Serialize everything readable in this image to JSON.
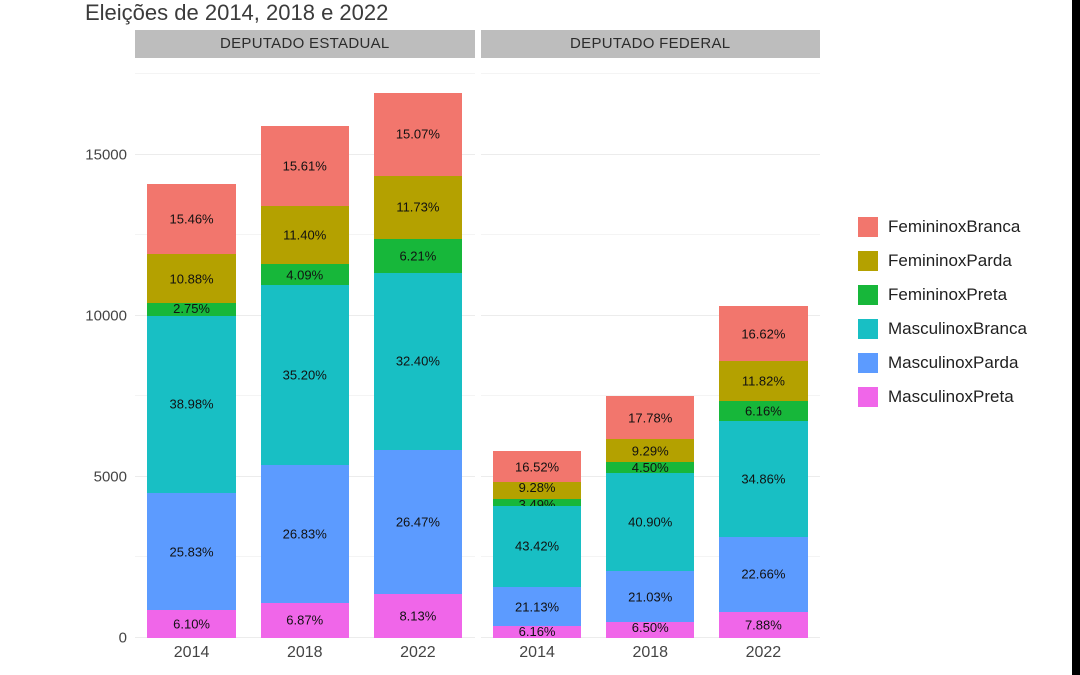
{
  "subtitle": "Eleições de 2014, 2018 e 2022",
  "ymax": 18000,
  "y_ticks": [
    0,
    5000,
    10000,
    15000
  ],
  "y_minor_ticks": [
    2500,
    7500,
    12500,
    17500
  ],
  "colors": {
    "FemininoxBranca": "#f2766d",
    "FemininoxParda": "#b4a100",
    "FemininoxPreta": "#17b73a",
    "MasculinoxBranca": "#18bfc4",
    "MasculinoxParda": "#5c9bff",
    "MasculinoxPreta": "#f066e9",
    "strip_bg": "#bdbdbd",
    "grid": "#ececec",
    "grid_minor": "#f4f4f4",
    "text": "#444444",
    "legend_text": "#1f1f1f",
    "bg": "#ffffff"
  },
  "stack_order": [
    "MasculinoxPreta",
    "MasculinoxParda",
    "MasculinoxBranca",
    "FemininoxPreta",
    "FemininoxParda",
    "FemininoxBranca"
  ],
  "legend_order": [
    "FemininoxBranca",
    "FemininoxParda",
    "FemininoxPreta",
    "MasculinoxBranca",
    "MasculinoxParda",
    "MasculinoxPreta"
  ],
  "legend_labels": {
    "FemininoxBranca": "FemininoxBranca",
    "FemininoxParda": "FemininoxParda",
    "FemininoxPreta": "FemininoxPreta",
    "MasculinoxBranca": "MasculinoxBranca",
    "MasculinoxParda": "MasculinoxParda",
    "MasculinoxPreta": "MasculinoxPreta"
  },
  "panels": [
    {
      "title": "DEPUTADO ESTADUAL",
      "years": [
        {
          "x": "2014",
          "total": 14100,
          "segments": {
            "MasculinoxPreta": {
              "pct": "6.10%"
            },
            "MasculinoxParda": {
              "pct": "25.83%"
            },
            "MasculinoxBranca": {
              "pct": "38.98%"
            },
            "FemininoxPreta": {
              "pct": "2.75%"
            },
            "FemininoxParda": {
              "pct": "10.88%"
            },
            "FemininoxBranca": {
              "pct": "15.46%"
            }
          }
        },
        {
          "x": "2018",
          "total": 15900,
          "segments": {
            "MasculinoxPreta": {
              "pct": "6.87%"
            },
            "MasculinoxParda": {
              "pct": "26.83%"
            },
            "MasculinoxBranca": {
              "pct": "35.20%"
            },
            "FemininoxPreta": {
              "pct": "4.09%"
            },
            "FemininoxParda": {
              "pct": "11.40%"
            },
            "FemininoxBranca": {
              "pct": "15.61%"
            }
          }
        },
        {
          "x": "2022",
          "total": 16900,
          "segments": {
            "MasculinoxPreta": {
              "pct": "8.13%"
            },
            "MasculinoxParda": {
              "pct": "26.47%"
            },
            "MasculinoxBranca": {
              "pct": "32.40%"
            },
            "FemininoxPreta": {
              "pct": "6.21%"
            },
            "FemininoxParda": {
              "pct": "11.73%"
            },
            "FemininoxBranca": {
              "pct": "15.07%"
            }
          }
        }
      ]
    },
    {
      "title": "DEPUTADO FEDERAL",
      "years": [
        {
          "x": "2014",
          "total": 5800,
          "segments": {
            "MasculinoxPreta": {
              "pct": "6.16%"
            },
            "MasculinoxParda": {
              "pct": "21.13%"
            },
            "MasculinoxBranca": {
              "pct": "43.42%"
            },
            "FemininoxPreta": {
              "pct": "3.49%"
            },
            "FemininoxParda": {
              "pct": "9.28%"
            },
            "FemininoxBranca": {
              "pct": "16.52%"
            }
          }
        },
        {
          "x": "2018",
          "total": 7500,
          "segments": {
            "MasculinoxPreta": {
              "pct": "6.50%"
            },
            "MasculinoxParda": {
              "pct": "21.03%"
            },
            "MasculinoxBranca": {
              "pct": "40.90%"
            },
            "FemininoxPreta": {
              "pct": "4.50%"
            },
            "FemininoxParda": {
              "pct": "9.29%"
            },
            "FemininoxBranca": {
              "pct": "17.78%"
            }
          }
        },
        {
          "x": "2022",
          "total": 10300,
          "segments": {
            "MasculinoxPreta": {
              "pct": "7.88%"
            },
            "MasculinoxParda": {
              "pct": "22.66%"
            },
            "MasculinoxBranca": {
              "pct": "34.86%"
            },
            "FemininoxPreta": {
              "pct": "6.16%"
            },
            "FemininoxParda": {
              "pct": "11.82%"
            },
            "FemininoxBranca": {
              "pct": "16.62%"
            }
          }
        }
      ]
    }
  ]
}
